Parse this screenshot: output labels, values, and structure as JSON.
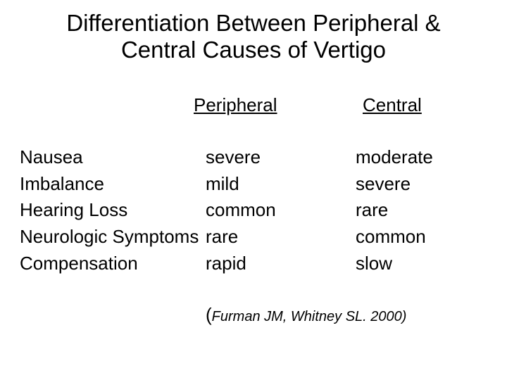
{
  "title_line1": "Differentiation Between Peripheral &",
  "title_line2": "Central Causes of Vertigo",
  "columns": {
    "peripheral_header": "Peripheral",
    "central_header": "Central"
  },
  "rows": [
    {
      "label": "Nausea",
      "peripheral": "severe",
      "central": "moderate"
    },
    {
      "label": "Imbalance",
      "peripheral": "mild",
      "central": "severe"
    },
    {
      "label": "Hearing Loss",
      "peripheral": "common",
      "central": "rare"
    },
    {
      "label": "Neurologic Symptoms",
      "peripheral": "rare",
      "central": "common"
    },
    {
      "label": "Compensation",
      "peripheral": "rapid",
      "central": "slow"
    }
  ],
  "citation": {
    "open_paren": "(",
    "text": "Furman JM, Whitney SL. 2000)",
    "close": ""
  },
  "style": {
    "background_color": "#ffffff",
    "text_color": "#000000",
    "title_fontsize": 33,
    "body_fontsize": 26,
    "citation_inner_fontsize": 20,
    "font_family": "Comic Sans MS"
  }
}
